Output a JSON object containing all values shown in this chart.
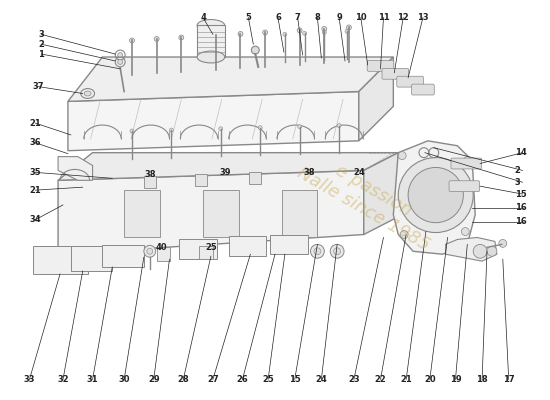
{
  "bg_color": "#ffffff",
  "line_color": "#aaaaaa",
  "dark_line": "#888888",
  "label_color": "#222222",
  "watermark_color": "#c8a84b",
  "watermark_alpha": 0.45,
  "label_fontsize": 6.0
}
